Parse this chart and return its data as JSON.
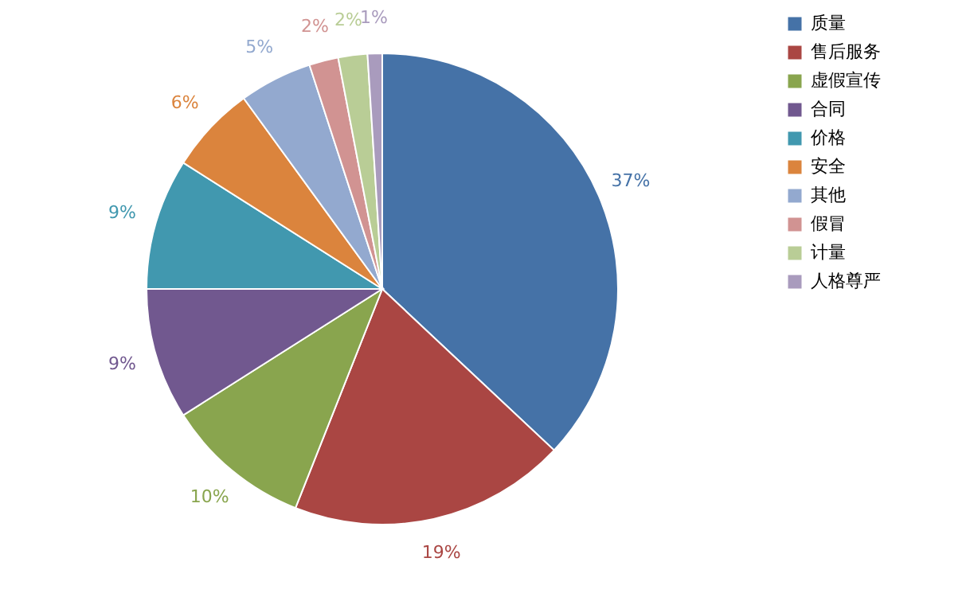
{
  "chart_data": {
    "type": "pie",
    "categories": [
      "质量",
      "售后服务",
      "虚假宣传",
      "合同",
      "价格",
      "安全",
      "其他",
      "假冒",
      "计量",
      "人格尊严"
    ],
    "values": [
      37,
      19,
      10,
      9,
      9,
      6,
      5,
      2,
      2,
      1
    ],
    "colors": [
      "#4572a7",
      "#aa4643",
      "#89a54e",
      "#71588f",
      "#4198af",
      "#db843d",
      "#93a9cf",
      "#d19392",
      "#b9cd96",
      "#a99bbd"
    ],
    "value_labels": [
      "37%",
      "19%",
      "10%",
      "9%",
      "9%",
      "6%",
      "5%",
      "2%",
      "2%",
      "1%"
    ],
    "legend": "right"
  }
}
